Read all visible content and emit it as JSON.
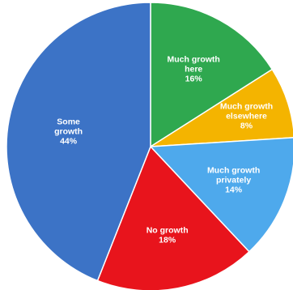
{
  "chart_data": {
    "type": "pie",
    "start_angle_deg": 0,
    "direction": "clockwise",
    "slices": [
      {
        "label_lines": [
          "Much growth",
          "here"
        ],
        "value_text": "16%",
        "value": 16,
        "color": "#2fa84f"
      },
      {
        "label_lines": [
          "Much growth",
          "elsewhere"
        ],
        "value_text": "8%",
        "value": 8,
        "color": "#f4b400"
      },
      {
        "label_lines": [
          "Much growth",
          "privately"
        ],
        "value_text": "14%",
        "value": 14,
        "color": "#4ea9ec"
      },
      {
        "label_lines": [
          "No growth"
        ],
        "value_text": "18%",
        "value": 18,
        "color": "#e8141c"
      },
      {
        "label_lines": [
          "Some",
          "growth"
        ],
        "value_text": "44%",
        "value": 44,
        "color": "#3c73c6"
      }
    ]
  }
}
